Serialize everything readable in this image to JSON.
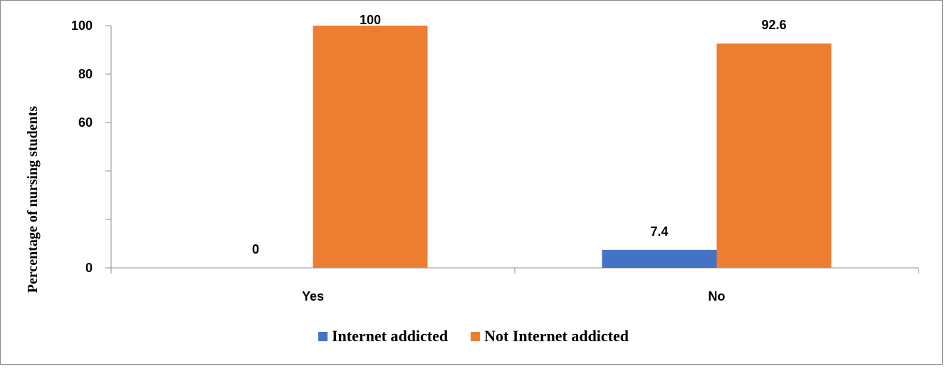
{
  "chart_data": {
    "type": "bar",
    "categories": [
      "Yes",
      "No"
    ],
    "series": [
      {
        "name": "Internet addicted",
        "values": [
          0,
          7.4
        ],
        "color": "#4472C4"
      },
      {
        "name": "Not Internet addicted",
        "values": [
          100,
          92.6
        ],
        "color": "#ED7D31"
      }
    ],
    "ylabel": "Percentage of nursing students",
    "ylim": [
      0,
      100
    ],
    "yticks": [
      "0",
      "60",
      "80",
      "100"
    ],
    "data_labels": [
      [
        "0",
        "7.4"
      ],
      [
        "100",
        "92.6"
      ]
    ],
    "legend": "bottom",
    "grid": false
  }
}
